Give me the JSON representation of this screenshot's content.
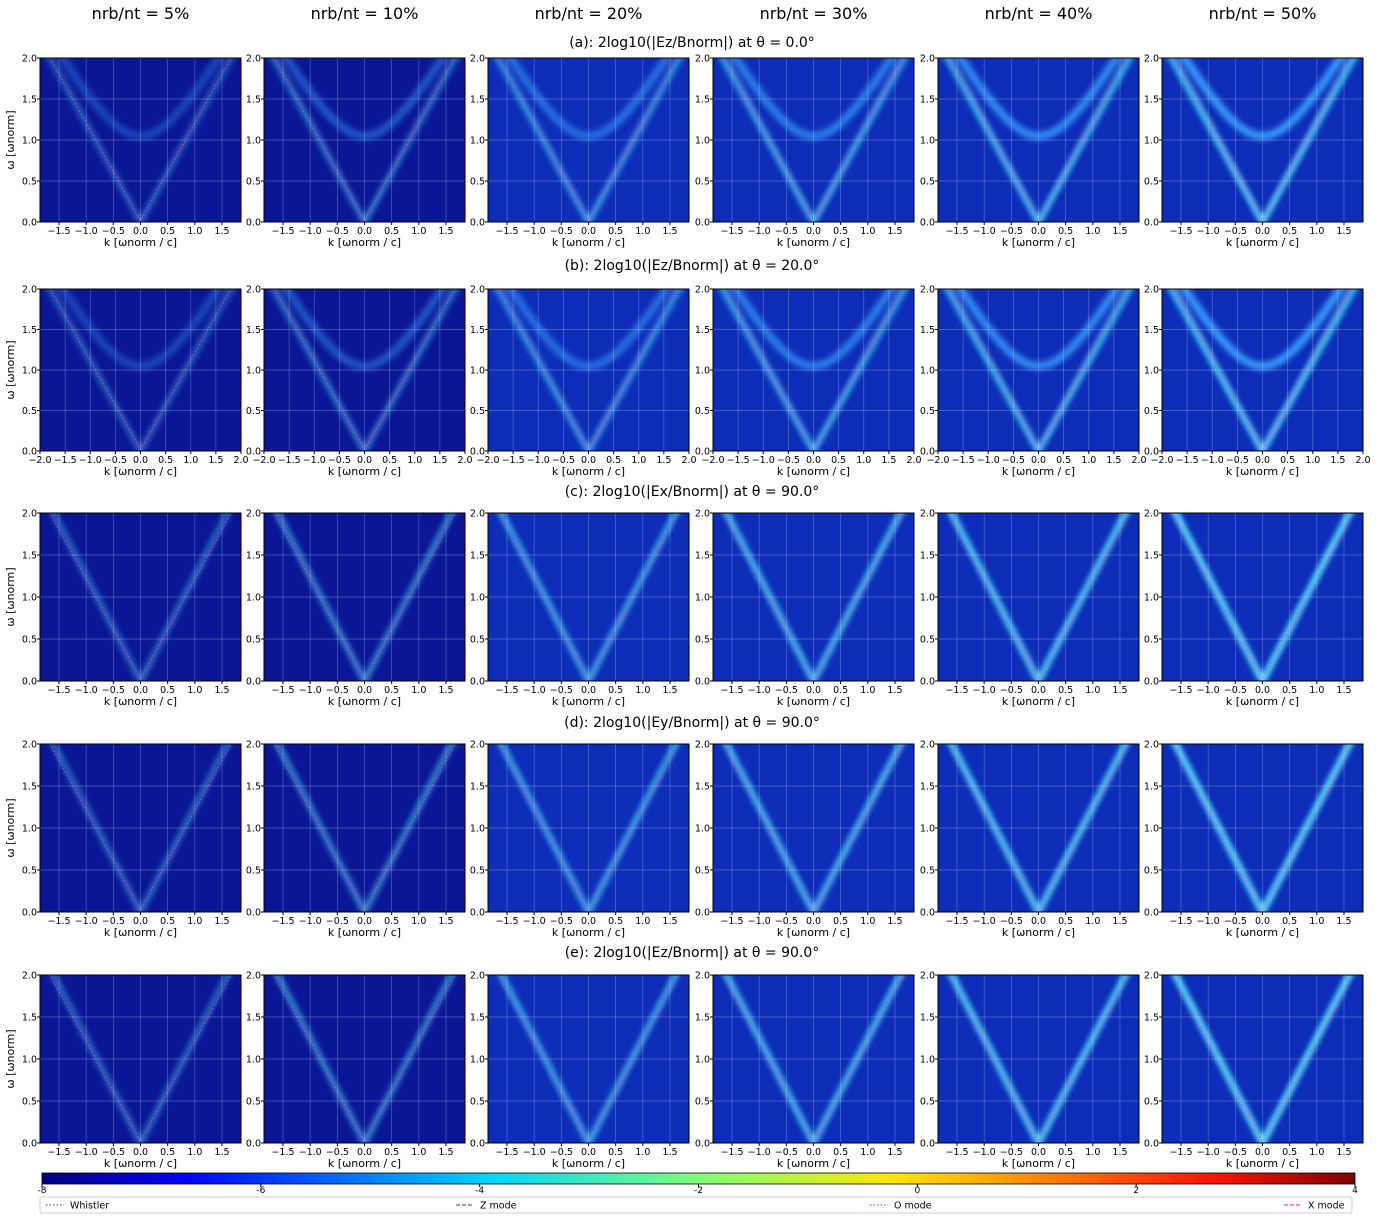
{
  "column_headers": [
    "nrb/nt = 5%",
    "nrb/nt = 10%",
    "nrb/nt = 20%",
    "nrb/nt = 30%",
    "nrb/nt = 40%",
    "nrb/nt = 50%"
  ],
  "chart_data": {
    "type": "heatmap-grid",
    "xlabel": "k [ωnorm / c]",
    "ylabel": "ω [ωnorm]",
    "ylim": [
      0,
      2
    ],
    "yticks": [
      {
        "value": 0,
        "label": "0.0"
      },
      {
        "value": 0.5,
        "label": "0.5"
      },
      {
        "value": 1,
        "label": "1.0"
      },
      {
        "value": 1.5,
        "label": "1.5"
      },
      {
        "value": 2,
        "label": "2.0"
      }
    ],
    "grid": true,
    "rows": [
      {
        "title": "(a): 2log10(|Ez/Bnorm|) at θ = 0.0°",
        "xlim": [
          -1.85,
          1.85
        ],
        "xticks": [
          {
            "value": -1.5,
            "label": "−1.5"
          },
          {
            "value": -1,
            "label": "−1.0"
          },
          {
            "value": -0.5,
            "label": "−0.5"
          },
          {
            "value": 0,
            "label": "0.0"
          },
          {
            "value": 0.5,
            "label": "0.5"
          },
          {
            "value": 1,
            "label": "1.0"
          },
          {
            "value": 1.5,
            "label": "1.5"
          }
        ]
      },
      {
        "title": "(b): 2log10(|Ez/Bnorm|) at θ = 20.0°",
        "xlim": [
          -2,
          2
        ],
        "xticks": [
          {
            "value": -2,
            "label": "−2.0"
          },
          {
            "value": -1.5,
            "label": "−1.5"
          },
          {
            "value": -1,
            "label": "−1.0"
          },
          {
            "value": -0.5,
            "label": "−0.5"
          },
          {
            "value": 0,
            "label": "0.0"
          },
          {
            "value": 0.5,
            "label": "0.5"
          },
          {
            "value": 1,
            "label": "1.0"
          },
          {
            "value": 1.5,
            "label": "1.5"
          },
          {
            "value": 2,
            "label": "2.0"
          }
        ]
      },
      {
        "title": "(c): 2log10(|Ex/Bnorm|) at θ = 90.0°",
        "xlim": [
          -1.85,
          1.85
        ],
        "xticks": [
          {
            "value": -1.5,
            "label": "−1.5"
          },
          {
            "value": -1,
            "label": "−1.0"
          },
          {
            "value": -0.5,
            "label": "−0.5"
          },
          {
            "value": 0,
            "label": "0.0"
          },
          {
            "value": 0.5,
            "label": "0.5"
          },
          {
            "value": 1,
            "label": "1.0"
          },
          {
            "value": 1.5,
            "label": "1.5"
          }
        ]
      },
      {
        "title": "(d): 2log10(|Ey/Bnorm|) at θ = 90.0°",
        "xlim": [
          -1.85,
          1.85
        ],
        "xticks": [
          {
            "value": -1.5,
            "label": "−1.5"
          },
          {
            "value": -1,
            "label": "−1.0"
          },
          {
            "value": -0.5,
            "label": "−0.5"
          },
          {
            "value": 0,
            "label": "0.0"
          },
          {
            "value": 0.5,
            "label": "0.5"
          },
          {
            "value": 1,
            "label": "1.0"
          },
          {
            "value": 1.5,
            "label": "1.5"
          }
        ]
      },
      {
        "title": "(e): 2log10(|Ez/Bnorm|) at θ = 90.0°",
        "xlim": [
          -1.85,
          1.85
        ],
        "xticks": [
          {
            "value": -1.5,
            "label": "−1.5"
          },
          {
            "value": -1,
            "label": "−1.0"
          },
          {
            "value": -0.5,
            "label": "−0.5"
          },
          {
            "value": 0,
            "label": "0.0"
          },
          {
            "value": 0.5,
            "label": "0.5"
          },
          {
            "value": 1,
            "label": "1.0"
          },
          {
            "value": 1.5,
            "label": "1.5"
          }
        ]
      }
    ],
    "colorbar": {
      "lim": [
        -8,
        4
      ],
      "ticks": [
        -8,
        -6,
        -4,
        -2,
        0,
        2,
        4
      ]
    },
    "legend": [
      {
        "name": "Whistler",
        "color": "#666666",
        "dash": "dotted"
      },
      {
        "name": "Z mode",
        "color": "#666666",
        "dash": "dashed"
      },
      {
        "name": "O mode",
        "color": "#e040e0",
        "dash": "dotted"
      },
      {
        "name": "X mode",
        "color": "#e040e0",
        "dash": "dashed"
      }
    ]
  }
}
